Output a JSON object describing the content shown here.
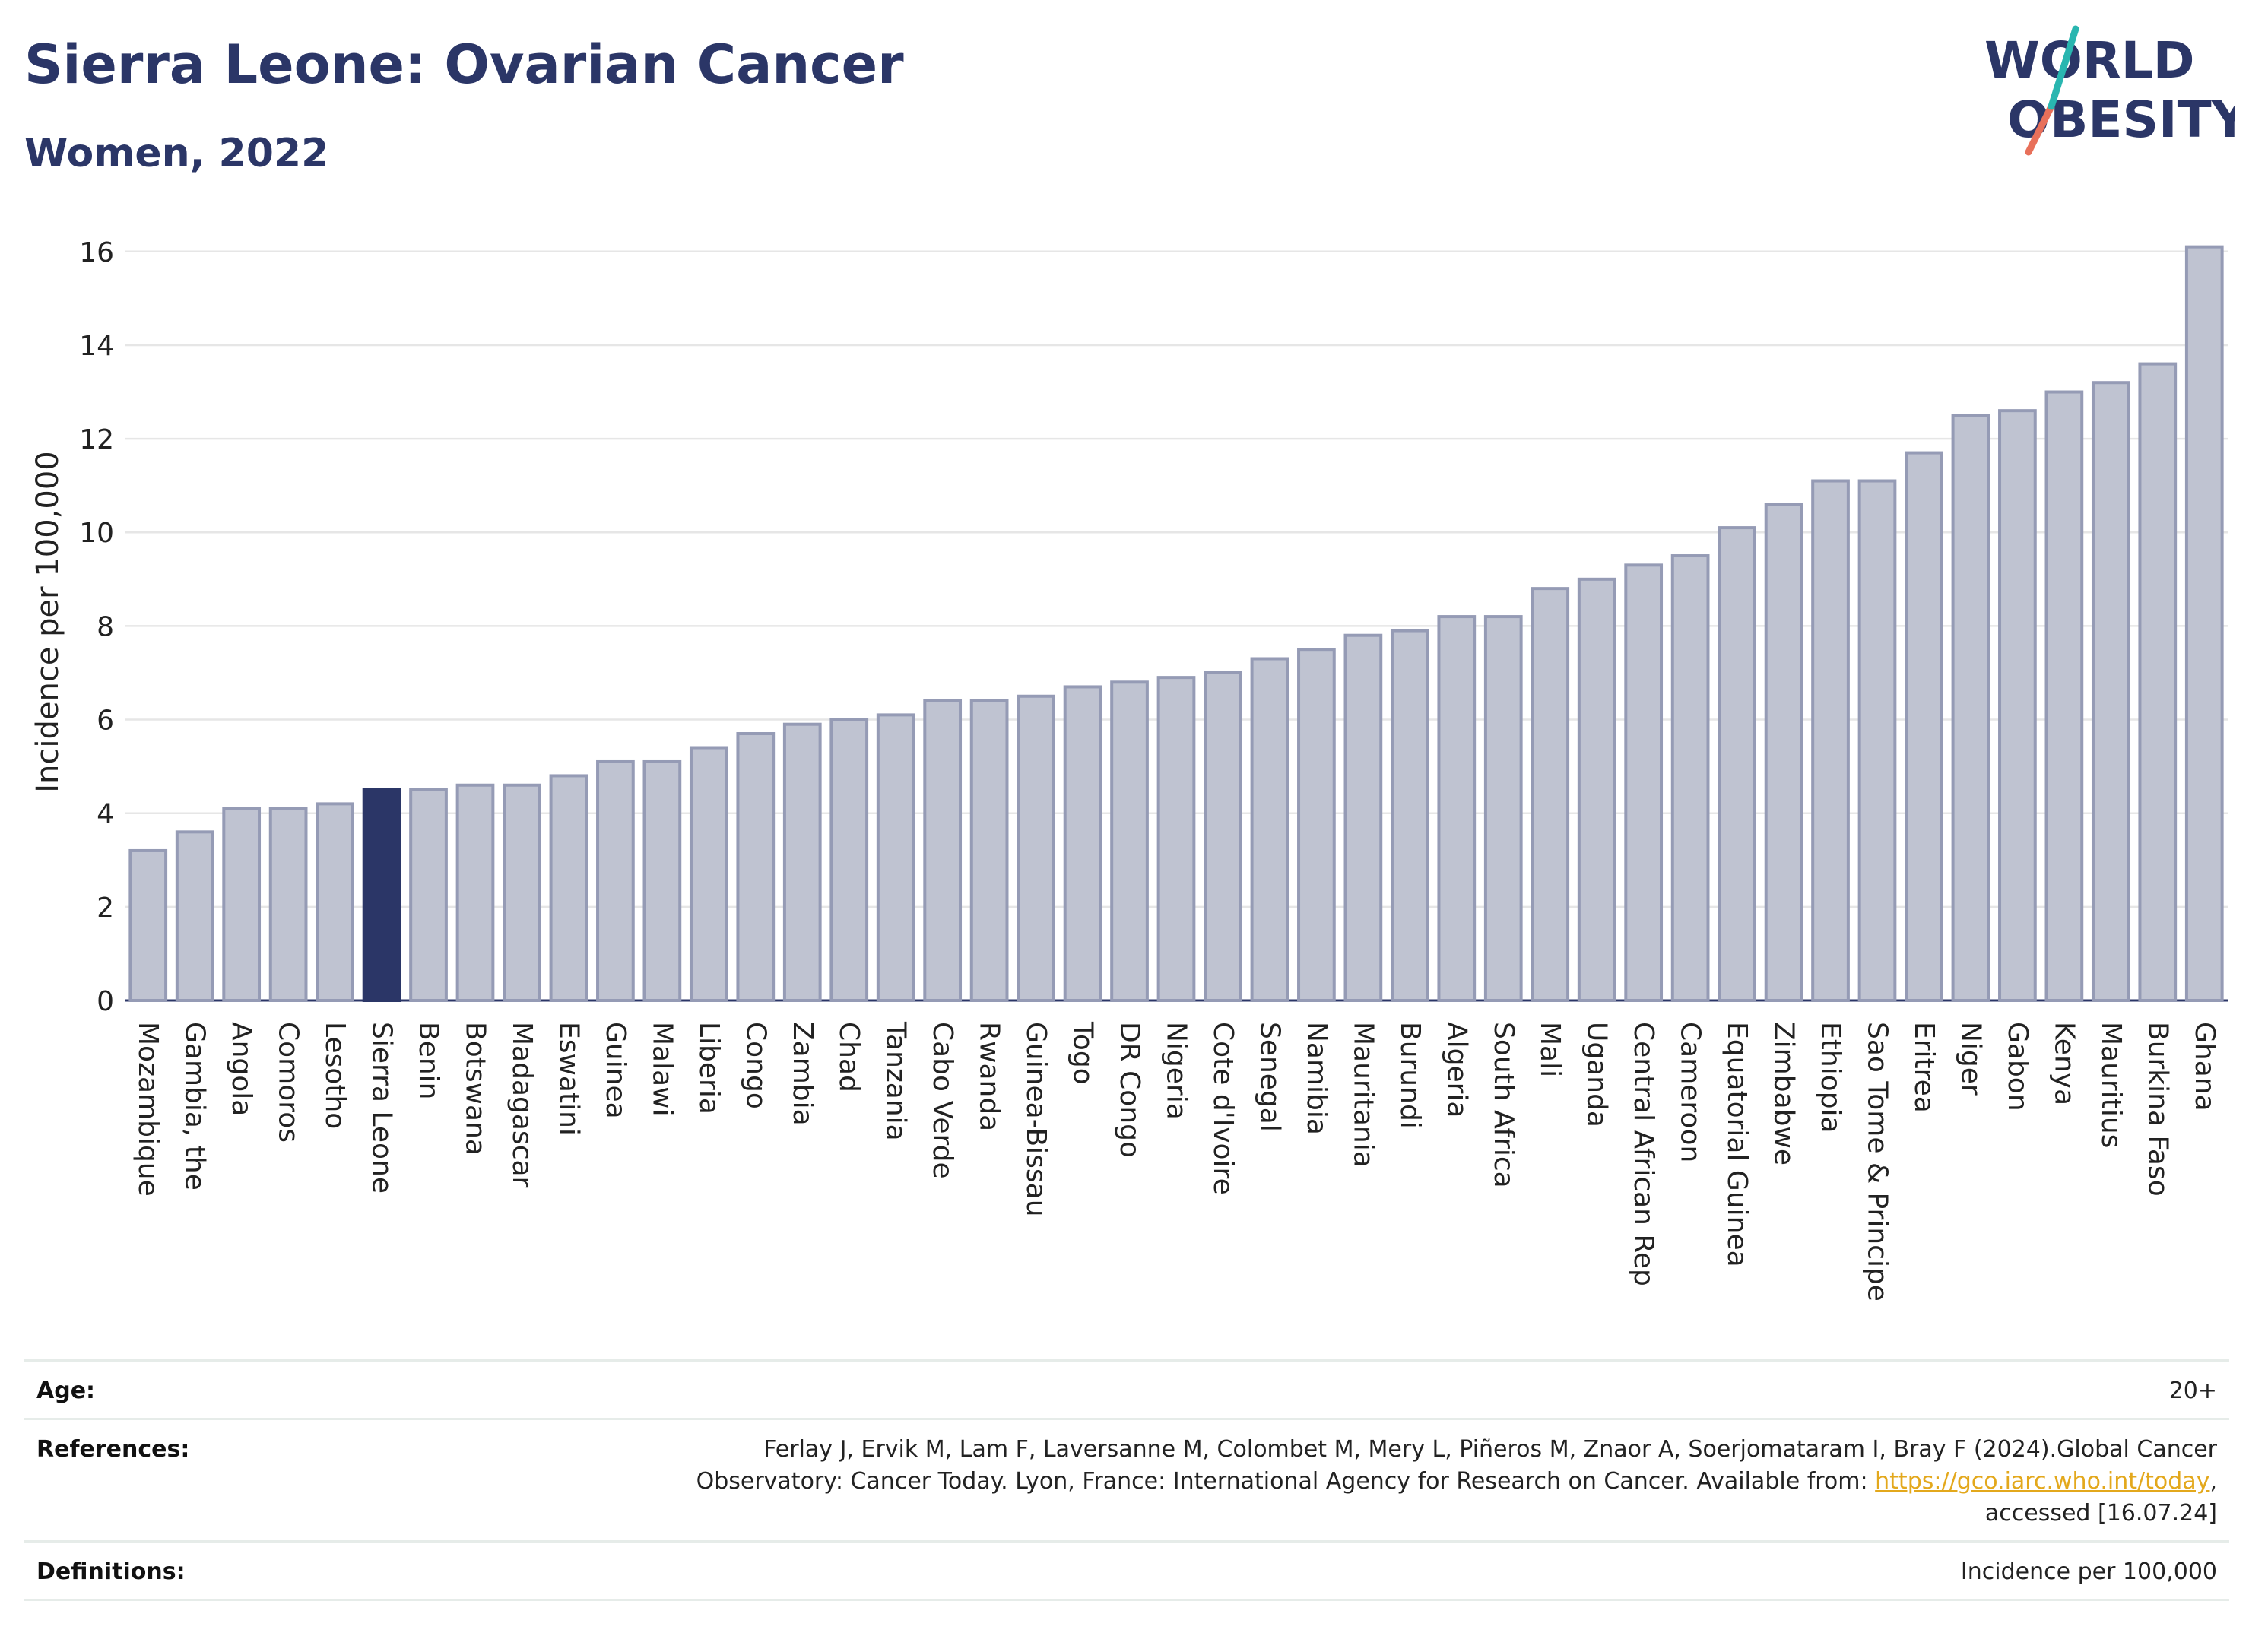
{
  "header": {
    "title": "Sierra Leone: Ovarian Cancer",
    "subtitle": "Women, 2022"
  },
  "logo": {
    "line1": "WORLD",
    "line2": "OBESITY"
  },
  "chart_data": {
    "type": "bar",
    "ylabel": "Incidence per 100,000",
    "xlabel": "",
    "ylim": [
      0,
      16.5
    ],
    "yticks": [
      0,
      2,
      4,
      6,
      8,
      10,
      12,
      14,
      16
    ],
    "grid": true,
    "highlight": "Sierra Leone",
    "colors": {
      "bar": "#bfc3d1",
      "bar_edge": "#959bb5",
      "highlight": "#2b3667"
    },
    "categories": [
      "Mozambique",
      "Gambia, the",
      "Angola",
      "Comoros",
      "Lesotho",
      "Sierra Leone",
      "Benin",
      "Botswana",
      "Madagascar",
      "Eswatini",
      "Guinea",
      "Malawi",
      "Liberia",
      "Congo",
      "Zambia",
      "Chad",
      "Tanzania",
      "Cabo Verde",
      "Rwanda",
      "Guinea-Bissau",
      "Togo",
      "DR Congo",
      "Nigeria",
      "Cote d'Ivoire",
      "Senegal",
      "Namibia",
      "Mauritania",
      "Burundi",
      "Algeria",
      "South Africa",
      "Mali",
      "Uganda",
      "Central African Rep",
      "Cameroon",
      "Equatorial Guinea",
      "Zimbabwe",
      "Ethiopia",
      "Sao Tome & Principe",
      "Eritrea",
      "Niger",
      "Gabon",
      "Kenya",
      "Mauritius",
      "Burkina Faso",
      "Ghana"
    ],
    "values": [
      3.2,
      3.6,
      4.1,
      4.1,
      4.2,
      4.5,
      4.5,
      4.6,
      4.6,
      4.8,
      5.1,
      5.1,
      5.4,
      5.7,
      5.9,
      6.0,
      6.1,
      6.4,
      6.4,
      6.5,
      6.7,
      6.8,
      6.9,
      7.0,
      7.3,
      7.5,
      7.8,
      7.9,
      8.2,
      8.2,
      8.8,
      9.0,
      9.3,
      9.5,
      10.1,
      10.6,
      11.1,
      11.1,
      11.7,
      12.5,
      12.6,
      13.0,
      13.2,
      13.6,
      16.1
    ]
  },
  "footer": {
    "age_label": "Age:",
    "age_value": "20+",
    "references_label": "References:",
    "references_text": "Ferlay J, Ervik M, Lam F, Laversanne M, Colombet M, Mery L, Piñeros M, Znaor A, Soerjomataram I, Bray F (2024).Global Cancer Observatory: Cancer Today. Lyon, France: International Agency for Research on Cancer. Available from: ",
    "references_link": "https://gco.iarc.who.int/today",
    "references_tail": ", accessed [16.07.24]",
    "definitions_label": "Definitions:",
    "definitions_value": "Incidence per 100,000"
  }
}
